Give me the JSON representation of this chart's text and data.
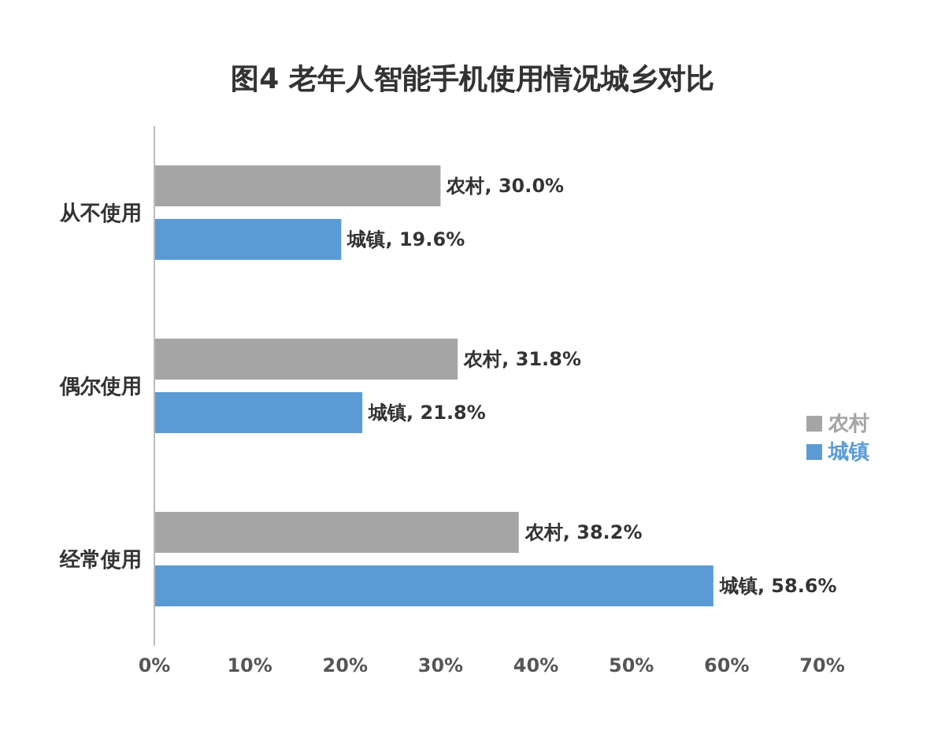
{
  "chart_data": {
    "type": "bar",
    "orientation": "horizontal",
    "title": "图4 老年人智能手机使用情况城乡对比",
    "categories": [
      "从不使用",
      "偶尔使用",
      "经常使用"
    ],
    "series": [
      {
        "name": "农村",
        "color": "#a5a5a5",
        "values": [
          30.0,
          31.8,
          38.2
        ],
        "value_labels": [
          "农村, 30.0%",
          "农村, 31.8%",
          "农村, 38.2%"
        ]
      },
      {
        "name": "城镇",
        "color": "#5b9bd5",
        "values": [
          19.6,
          21.8,
          58.6
        ],
        "value_labels": [
          "城镇, 19.6%",
          "城镇, 21.8%",
          "城镇, 58.6%"
        ]
      }
    ],
    "xlim": [
      0,
      70
    ],
    "xticks": [
      {
        "value": 0,
        "label": "0%"
      },
      {
        "value": 10,
        "label": "10%"
      },
      {
        "value": 20,
        "label": "20%"
      },
      {
        "value": 30,
        "label": "30%"
      },
      {
        "value": 40,
        "label": "40%"
      },
      {
        "value": 50,
        "label": "50%"
      },
      {
        "value": 60,
        "label": "60%"
      },
      {
        "value": 70,
        "label": "70%"
      }
    ],
    "grid": false,
    "legend": "right"
  }
}
